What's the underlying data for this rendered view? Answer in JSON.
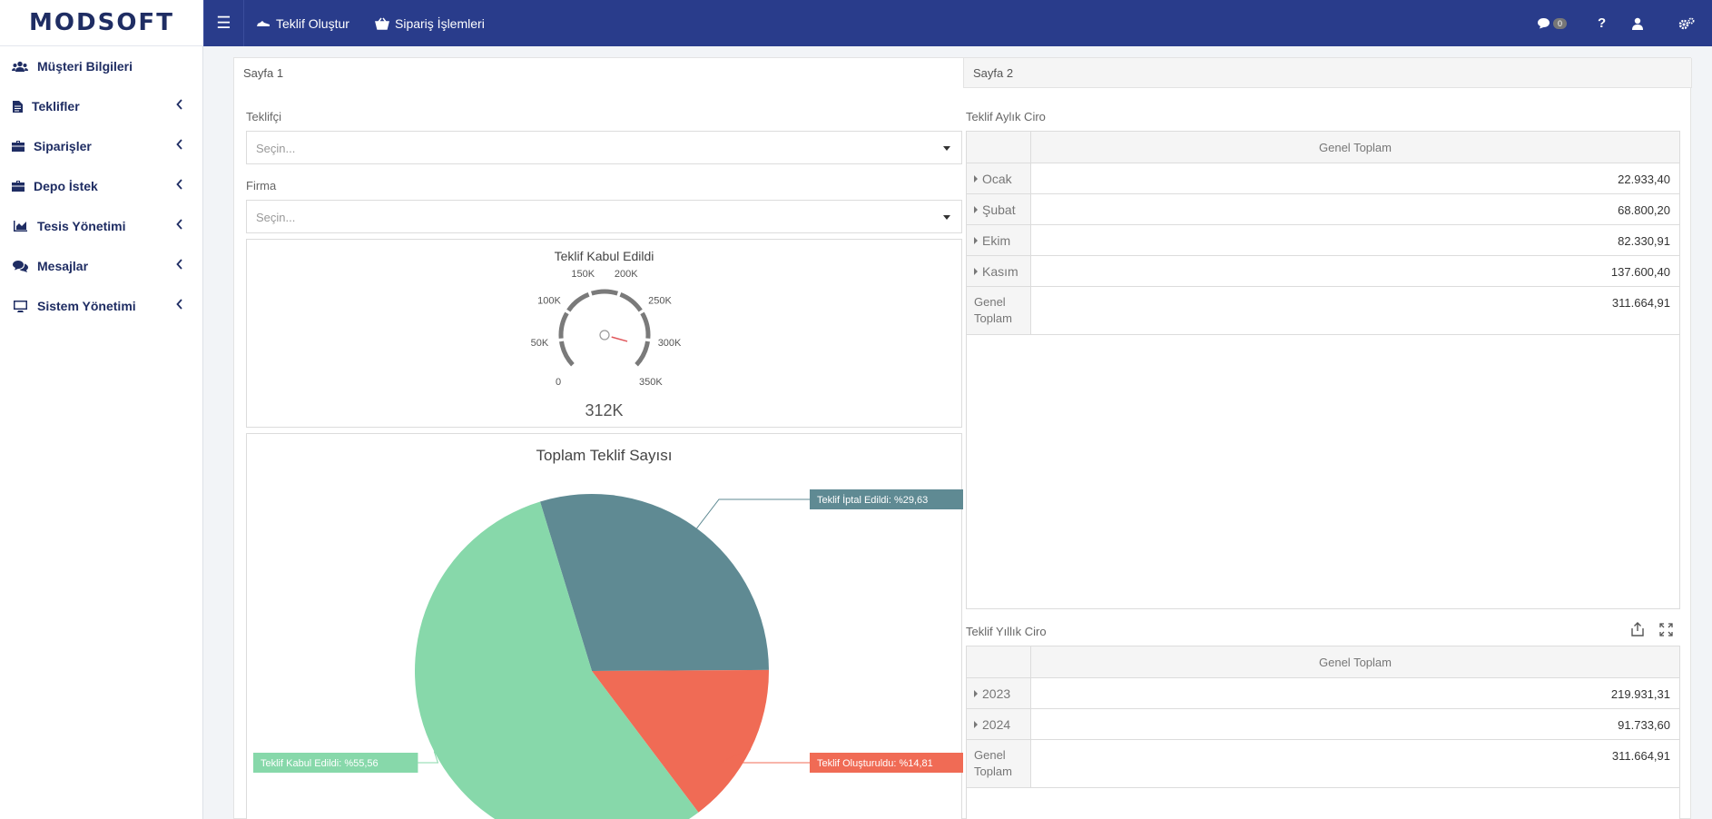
{
  "brand": {
    "logo_text": "MODSOFT"
  },
  "topbar": {
    "menu_icon": "hamburger-icon",
    "nav": [
      {
        "label": "Teklif Oluştur",
        "icon": "shoe-icon"
      },
      {
        "label": "Sipariş İşlemleri",
        "icon": "basket-icon"
      }
    ],
    "messages_count": "0",
    "help_label": "?",
    "colors": {
      "bar": "#293c8b",
      "brand_text": "#1f2d63"
    }
  },
  "sidebar": {
    "items": [
      {
        "label": "Müşteri Bilgileri",
        "icon": "users-icon",
        "has_children": false
      },
      {
        "label": "Teklifler",
        "icon": "file-icon",
        "has_children": true
      },
      {
        "label": "Siparişler",
        "icon": "briefcase-icon",
        "has_children": true
      },
      {
        "label": "Depo İstek",
        "icon": "briefcase-icon",
        "has_children": true
      },
      {
        "label": "Tesis Yönetimi",
        "icon": "chart-icon",
        "has_children": true
      },
      {
        "label": "Mesajlar",
        "icon": "comments-icon",
        "has_children": true
      },
      {
        "label": "Sistem Yönetimi",
        "icon": "monitor-icon",
        "has_children": true
      }
    ]
  },
  "tabs": [
    {
      "label": "Sayfa 1",
      "active": true
    },
    {
      "label": "Sayfa 2",
      "active": false
    }
  ],
  "filters": {
    "teklifci": {
      "label": "Teklifçi",
      "placeholder": "Seçin..."
    },
    "firma": {
      "label": "Firma",
      "placeholder": "Seçin..."
    }
  },
  "gauge": {
    "title": "Teklif Kabul Edildi",
    "value_label": "312K",
    "value": 311664.91,
    "min": 0,
    "max": 350000,
    "ticks": [
      "0",
      "50K",
      "100K",
      "150K",
      "200K",
      "250K",
      "300K",
      "350K"
    ],
    "needle_color": "#e0555a"
  },
  "chart_data": {
    "type": "pie",
    "title": "Toplam Teklif Sayısı",
    "slices": [
      {
        "label": "Teklif İptal Edildi: %29,63",
        "value": 29.63,
        "color": "#5f8a93"
      },
      {
        "label": "Teklif Oluşturuldu: %14,81",
        "value": 14.81,
        "color": "#f06b55"
      },
      {
        "label": "Teklif Kabul Edildi: %55,56",
        "value": 55.56,
        "color": "#87d8aa"
      }
    ]
  },
  "monthly": {
    "title": "Teklif Aylık Ciro",
    "header": "Genel Toplam",
    "rows": [
      {
        "label": "Ocak",
        "value": "22.933,40"
      },
      {
        "label": "Şubat",
        "value": "68.800,20"
      },
      {
        "label": "Ekim",
        "value": "82.330,91"
      },
      {
        "label": "Kasım",
        "value": "137.600,40"
      }
    ],
    "total_label_1": "Genel",
    "total_label_2": "Toplam",
    "total_value": "311.664,91"
  },
  "yearly": {
    "title": "Teklif Yıllık Ciro",
    "header": "Genel Toplam",
    "export_icon": "export-icon",
    "fullscreen_icon": "fullscreen-icon",
    "rows": [
      {
        "label": "2023",
        "value": "219.931,31"
      },
      {
        "label": "2024",
        "value": "91.733,60"
      }
    ],
    "total_label_1": "Genel",
    "total_label_2": "Toplam",
    "total_value": "311.664,91"
  }
}
